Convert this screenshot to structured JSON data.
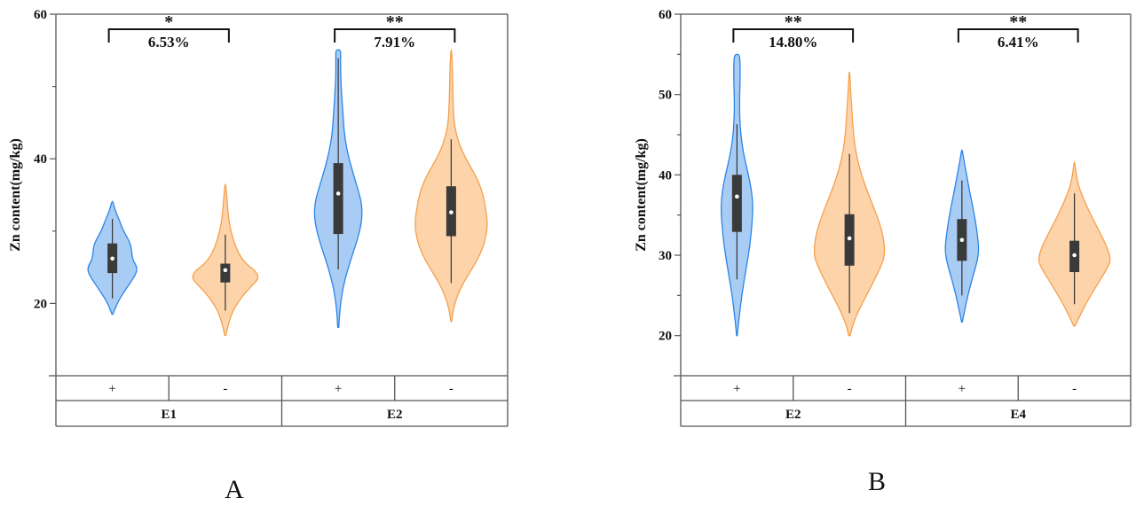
{
  "figure": {
    "panels": [
      "A",
      "B"
    ]
  },
  "colors": {
    "plus_fill": "#a9ccf5",
    "plus_stroke": "#2a84e8",
    "minus_fill": "#fdd3aa",
    "minus_stroke": "#f5a04c",
    "box": "#3a3a3a"
  },
  "chart_data": [
    {
      "type": "violin",
      "panel_label": "A",
      "title": "",
      "xlabel": "",
      "ylabel": "Zn content(mg/kg)",
      "ylim": [
        10,
        60
      ],
      "yticks": [
        20,
        40,
        60
      ],
      "ytick_labels": [
        "20",
        "40",
        "60"
      ],
      "minor_yticks": [
        30,
        50
      ],
      "grid": false,
      "legend": "none",
      "categories": [
        "+",
        "-",
        "+",
        "-"
      ],
      "groups": [
        {
          "label": "E1",
          "span": 2
        },
        {
          "label": "E2",
          "span": 2
        }
      ],
      "series": [
        {
          "name": "E1 +",
          "treatment": "+",
          "min": 18.5,
          "max": 34.1,
          "whisker_low": 20.7,
          "whisker_high": 31.7,
          "q1": 24.2,
          "median": 26.2,
          "q3": 28.3,
          "density": [
            [
              18.5,
              0.02
            ],
            [
              20,
              0.18
            ],
            [
              22,
              0.55
            ],
            [
              24,
              0.95
            ],
            [
              25,
              1.0
            ],
            [
              26,
              0.82
            ],
            [
              27,
              0.78
            ],
            [
              28,
              0.75
            ],
            [
              29,
              0.62
            ],
            [
              30,
              0.45
            ],
            [
              31.5,
              0.28
            ],
            [
              33,
              0.1
            ],
            [
              34.1,
              0.02
            ]
          ]
        },
        {
          "name": "E1 -",
          "treatment": "-",
          "min": 15.6,
          "max": 36.5,
          "whisker_low": 19.0,
          "whisker_high": 29.5,
          "q1": 22.9,
          "median": 24.6,
          "q3": 25.5,
          "density": [
            [
              15.6,
              0.02
            ],
            [
              17,
              0.08
            ],
            [
              19,
              0.22
            ],
            [
              21,
              0.5
            ],
            [
              22.5,
              0.8
            ],
            [
              23.5,
              1.0
            ],
            [
              24.5,
              0.9
            ],
            [
              25.5,
              0.6
            ],
            [
              27,
              0.38
            ],
            [
              29,
              0.22
            ],
            [
              31,
              0.12
            ],
            [
              33,
              0.07
            ],
            [
              35,
              0.04
            ],
            [
              36.5,
              0.01
            ]
          ]
        },
        {
          "name": "E2 +",
          "treatment": "+",
          "min": 16.7,
          "max": 55.1,
          "whisker_low": 24.7,
          "whisker_high": 53.9,
          "q1": 29.6,
          "median": 35.2,
          "q3": 39.4,
          "density": [
            [
              16.7,
              0.02
            ],
            [
              19,
              0.06
            ],
            [
              22,
              0.18
            ],
            [
              25,
              0.42
            ],
            [
              28,
              0.72
            ],
            [
              30,
              0.9
            ],
            [
              32,
              1.0
            ],
            [
              34,
              0.97
            ],
            [
              36,
              0.8
            ],
            [
              38,
              0.62
            ],
            [
              40,
              0.45
            ],
            [
              42,
              0.32
            ],
            [
              44,
              0.24
            ],
            [
              46,
              0.2
            ],
            [
              48,
              0.16
            ],
            [
              50,
              0.12
            ],
            [
              52,
              0.1
            ],
            [
              54,
              0.1
            ],
            [
              55.1,
              0.1
            ]
          ]
        },
        {
          "name": "E2 -",
          "treatment": "-",
          "min": 17.5,
          "max": 55.1,
          "whisker_low": 22.8,
          "whisker_high": 42.7,
          "q1": 29.3,
          "median": 32.6,
          "q3": 36.2,
          "density": [
            [
              17.5,
              0.01
            ],
            [
              19,
              0.05
            ],
            [
              21,
              0.16
            ],
            [
              23,
              0.35
            ],
            [
              25,
              0.6
            ],
            [
              27,
              0.82
            ],
            [
              29,
              0.95
            ],
            [
              31,
              1.0
            ],
            [
              33,
              0.95
            ],
            [
              35,
              0.88
            ],
            [
              37,
              0.74
            ],
            [
              39,
              0.52
            ],
            [
              41,
              0.3
            ],
            [
              43,
              0.16
            ],
            [
              45,
              0.08
            ],
            [
              48,
              0.05
            ],
            [
              51,
              0.04
            ],
            [
              53,
              0.03
            ],
            [
              55.1,
              0.01
            ]
          ]
        }
      ],
      "annotations": [
        {
          "pair": [
            "E1 +",
            "E1 -"
          ],
          "stars": "*",
          "text": "6.53%"
        },
        {
          "pair": [
            "E2 +",
            "E2 -"
          ],
          "stars": "**",
          "text": "7.91%"
        }
      ]
    },
    {
      "type": "violin",
      "panel_label": "B",
      "title": "",
      "xlabel": "",
      "ylabel": "Zn content(mg/kg)",
      "ylim": [
        15,
        60
      ],
      "yticks": [
        20,
        30,
        40,
        50,
        60
      ],
      "ytick_labels": [
        "20",
        "30",
        "40",
        "50",
        "60"
      ],
      "minor_yticks": [
        25,
        35,
        45,
        55
      ],
      "grid": false,
      "legend": "none",
      "categories": [
        "+",
        "-",
        "+",
        "-"
      ],
      "groups": [
        {
          "label": "E2",
          "span": 2
        },
        {
          "label": "E4",
          "span": 2
        }
      ],
      "series": [
        {
          "name": "E2 +",
          "treatment": "+",
          "min": 20.0,
          "max": 55.0,
          "whisker_low": 27.0,
          "whisker_high": 46.3,
          "q1": 32.9,
          "median": 37.3,
          "q3": 40.0,
          "density": [
            [
              20,
              0.02
            ],
            [
              22,
              0.12
            ],
            [
              25,
              0.3
            ],
            [
              28,
              0.55
            ],
            [
              31,
              0.8
            ],
            [
              34,
              0.95
            ],
            [
              36,
              1.0
            ],
            [
              38,
              0.92
            ],
            [
              40,
              0.72
            ],
            [
              42,
              0.48
            ],
            [
              44,
              0.3
            ],
            [
              46,
              0.2
            ],
            [
              48,
              0.16
            ],
            [
              50,
              0.17
            ],
            [
              52,
              0.2
            ],
            [
              54,
              0.2
            ],
            [
              55,
              0.15
            ]
          ]
        },
        {
          "name": "E2 -",
          "treatment": "-",
          "min": 20.0,
          "max": 52.8,
          "whisker_low": 22.8,
          "whisker_high": 42.6,
          "q1": 28.7,
          "median": 32.1,
          "q3": 35.1,
          "density": [
            [
              20,
              0.02
            ],
            [
              21.5,
              0.1
            ],
            [
              23.5,
              0.3
            ],
            [
              26,
              0.6
            ],
            [
              28.5,
              0.88
            ],
            [
              30,
              1.0
            ],
            [
              32,
              0.97
            ],
            [
              34,
              0.85
            ],
            [
              36,
              0.68
            ],
            [
              38,
              0.5
            ],
            [
              40,
              0.34
            ],
            [
              42,
              0.22
            ],
            [
              44,
              0.14
            ],
            [
              46,
              0.1
            ],
            [
              48,
              0.07
            ],
            [
              50,
              0.04
            ],
            [
              52.8,
              0.01
            ]
          ]
        },
        {
          "name": "E4 +",
          "treatment": "+",
          "min": 21.7,
          "max": 43.1,
          "whisker_low": 25.0,
          "whisker_high": 39.3,
          "q1": 29.3,
          "median": 31.9,
          "q3": 34.5,
          "density": [
            [
              21.7,
              0.02
            ],
            [
              23,
              0.15
            ],
            [
              25,
              0.35
            ],
            [
              27,
              0.6
            ],
            [
              29,
              0.88
            ],
            [
              30.5,
              1.0
            ],
            [
              32,
              0.95
            ],
            [
              34,
              0.82
            ],
            [
              36,
              0.65
            ],
            [
              38,
              0.45
            ],
            [
              40,
              0.28
            ],
            [
              42,
              0.1
            ],
            [
              43.1,
              0.02
            ]
          ]
        },
        {
          "name": "E4 -",
          "treatment": "-",
          "min": 21.2,
          "max": 41.6,
          "whisker_low": 23.9,
          "whisker_high": 37.7,
          "q1": 27.9,
          "median": 30.0,
          "q3": 31.8,
          "density": [
            [
              21.2,
              0.02
            ],
            [
              22.5,
              0.15
            ],
            [
              24.5,
              0.38
            ],
            [
              26.5,
              0.65
            ],
            [
              28.5,
              0.92
            ],
            [
              29.5,
              1.0
            ],
            [
              31,
              0.9
            ],
            [
              33,
              0.68
            ],
            [
              35,
              0.45
            ],
            [
              37,
              0.25
            ],
            [
              38.5,
              0.12
            ],
            [
              40,
              0.05
            ],
            [
              41.6,
              0.01
            ]
          ]
        }
      ],
      "annotations": [
        {
          "pair": [
            "E2 +",
            "E2 -"
          ],
          "stars": "**",
          "text": "14.80%"
        },
        {
          "pair": [
            "E4 +",
            "E4 -"
          ],
          "stars": "**",
          "text": "6.41%"
        }
      ]
    }
  ]
}
